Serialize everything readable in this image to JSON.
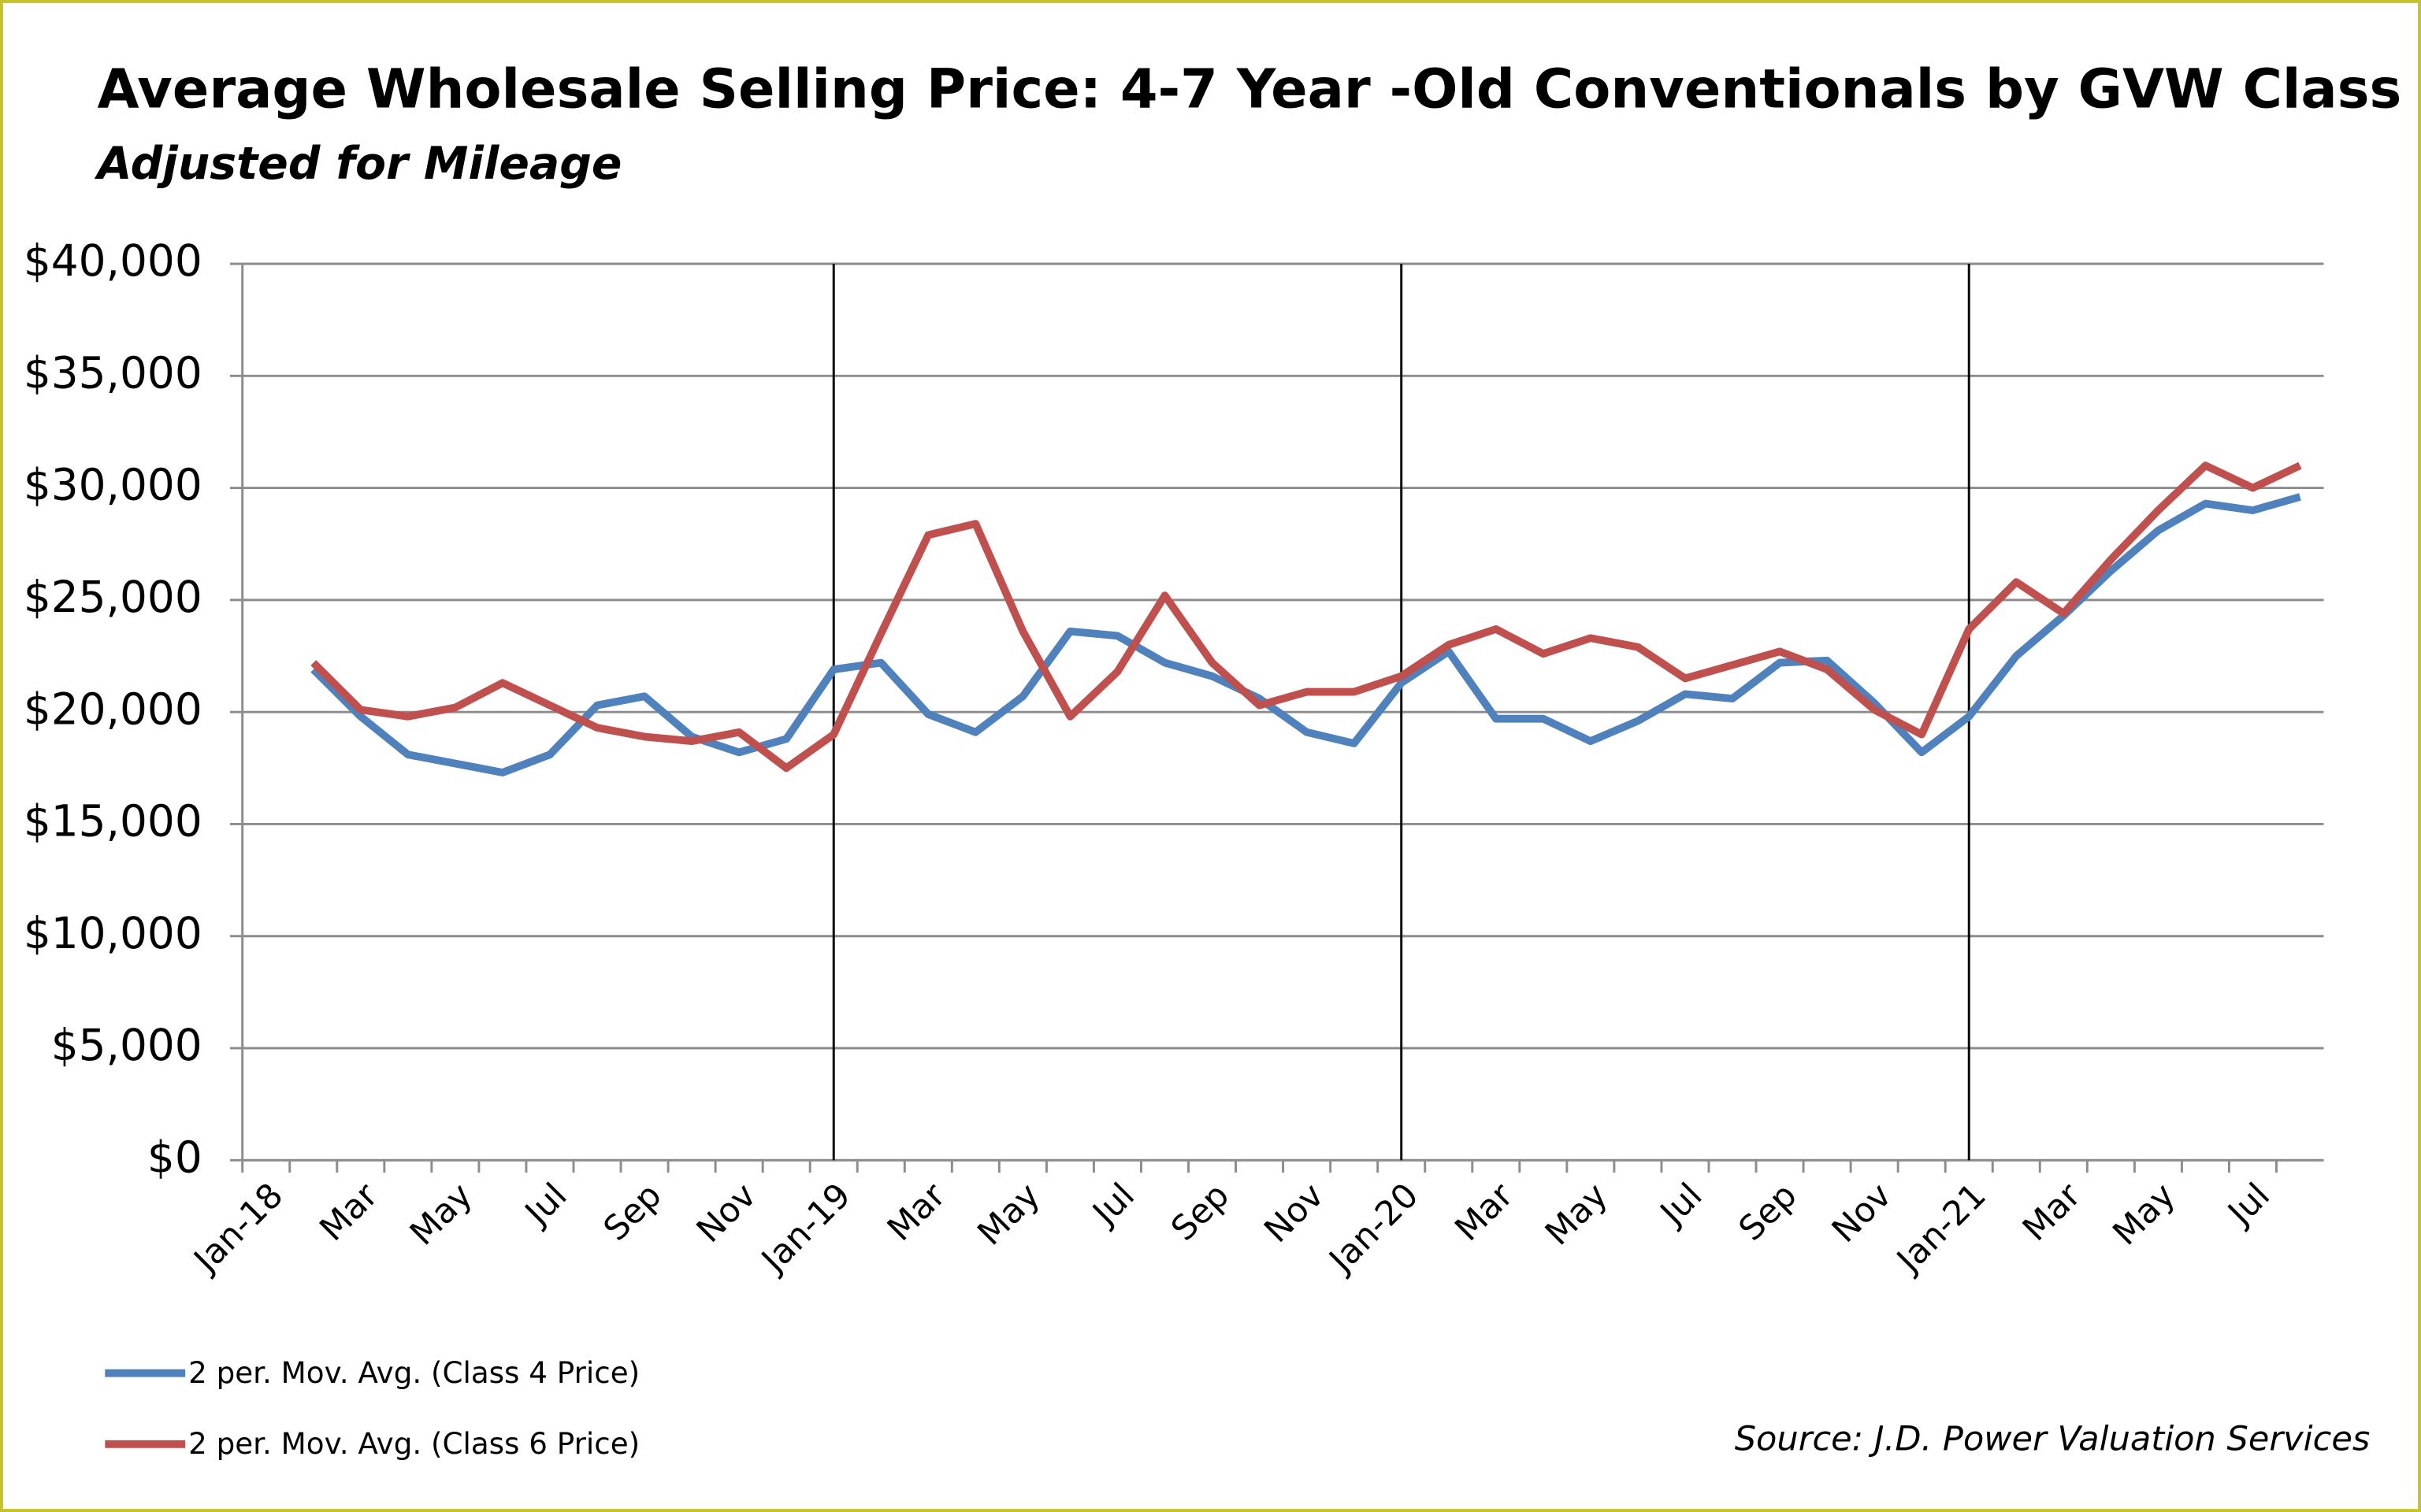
{
  "chart_data": {
    "type": "line",
    "title": "Average Wholesale Selling Price: 4-7 Year -Old Conventionals by GVW Class",
    "subtitle": "Adjusted for Mileage",
    "source": "Source: J.D. Power Valuation Services",
    "categories": [
      "Jan-18",
      null,
      "Mar",
      null,
      "May",
      null,
      "Jul",
      null,
      "Sep",
      null,
      "Nov",
      null,
      "Jan-19",
      null,
      "Mar",
      null,
      "May",
      null,
      "Jul",
      null,
      "Sep",
      null,
      "Nov",
      null,
      "Jan-20",
      null,
      "Mar",
      null,
      "May",
      null,
      "Jul",
      null,
      "Sep",
      null,
      "Nov",
      null,
      "Jan-21",
      null,
      "Mar",
      null,
      "May",
      null,
      "Jul",
      null
    ],
    "series": [
      {
        "name": "2 per. Mov. Avg. (Class 4 Price)",
        "color": "#4f81bd",
        "values": [
          null,
          21900,
          19800,
          18100,
          17700,
          17300,
          18100,
          20300,
          20700,
          18900,
          18200,
          18800,
          21900,
          22200,
          19900,
          19100,
          20700,
          23600,
          23400,
          22200,
          21600,
          20600,
          19100,
          18600,
          21300,
          22700,
          19700,
          19700,
          18700,
          19600,
          20800,
          20600,
          22200,
          22300,
          20400,
          18200,
          19800,
          22500,
          24300,
          26300,
          28100,
          29300,
          29000,
          29600
        ]
      },
      {
        "name": "2 per. Mov. Avg. (Class 6 Price)",
        "color": "#c0504d",
        "values": [
          null,
          22200,
          20100,
          19800,
          20200,
          21300,
          20300,
          19300,
          18900,
          18700,
          19100,
          17500,
          19000,
          23500,
          27900,
          28400,
          23600,
          19800,
          21800,
          25200,
          22200,
          20300,
          20900,
          20900,
          21600,
          23000,
          23700,
          22600,
          23300,
          22900,
          21500,
          22100,
          22700,
          21900,
          20100,
          19000,
          23700,
          25800,
          24400,
          26800,
          29000,
          31000,
          30000,
          31000
        ]
      }
    ],
    "ylim": [
      0,
      40000
    ],
    "yticks": [
      {
        "value": 0,
        "label": "$0"
      },
      {
        "value": 5000,
        "label": "$5,000"
      },
      {
        "value": 10000,
        "label": "$10,000"
      },
      {
        "value": 15000,
        "label": "$15,000"
      },
      {
        "value": 20000,
        "label": "$20,000"
      },
      {
        "value": 25000,
        "label": "$25,000"
      },
      {
        "value": 30000,
        "label": "$30,000"
      },
      {
        "value": 35000,
        "label": "$35,000"
      },
      {
        "value": 40000,
        "label": "$40,000"
      }
    ],
    "grid": true,
    "legend": "bottom-left"
  }
}
